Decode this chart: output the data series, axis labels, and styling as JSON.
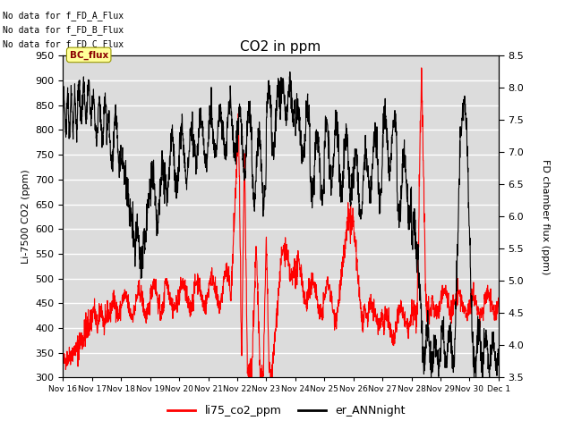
{
  "title": "CO2 in ppm",
  "ylabel_left": "Li-7500 CO2 (ppm)",
  "ylabel_right": "FD chamber flux (ppm)",
  "ylim_left": [
    300,
    950
  ],
  "ylim_right": [
    3.5,
    8.5
  ],
  "yticks_left": [
    300,
    350,
    400,
    450,
    500,
    550,
    600,
    650,
    700,
    750,
    800,
    850,
    900,
    950
  ],
  "yticks_right": [
    3.5,
    4.0,
    4.5,
    5.0,
    5.5,
    6.0,
    6.5,
    7.0,
    7.5,
    8.0,
    8.5
  ],
  "xlabel_ticks": [
    "Nov 16",
    "Nov 17",
    "Nov 18",
    "Nov 19",
    "Nov 20",
    "Nov 21",
    "Nov 22",
    "Nov 23",
    "Nov 24",
    "Nov 25",
    "Nov 26",
    "Nov 27",
    "Nov 28",
    "Nov 29",
    "Nov 30",
    "Dec 1"
  ],
  "no_data_texts": [
    "No data for f_FD_A_Flux",
    "No data for f_FD_B_Flux",
    "No data for f_FD_C_Flux"
  ],
  "bc_flux_label": "BC_flux",
  "legend_entries": [
    "li75_co2_ppm",
    "er_ANNnight"
  ],
  "line_colors": [
    "#ff0000",
    "#000000"
  ],
  "background_color": "#ffffff",
  "plot_bg_color": "#dcdcdc",
  "grid_color": "#ffffff",
  "figsize": [
    6.4,
    4.8
  ],
  "dpi": 100
}
